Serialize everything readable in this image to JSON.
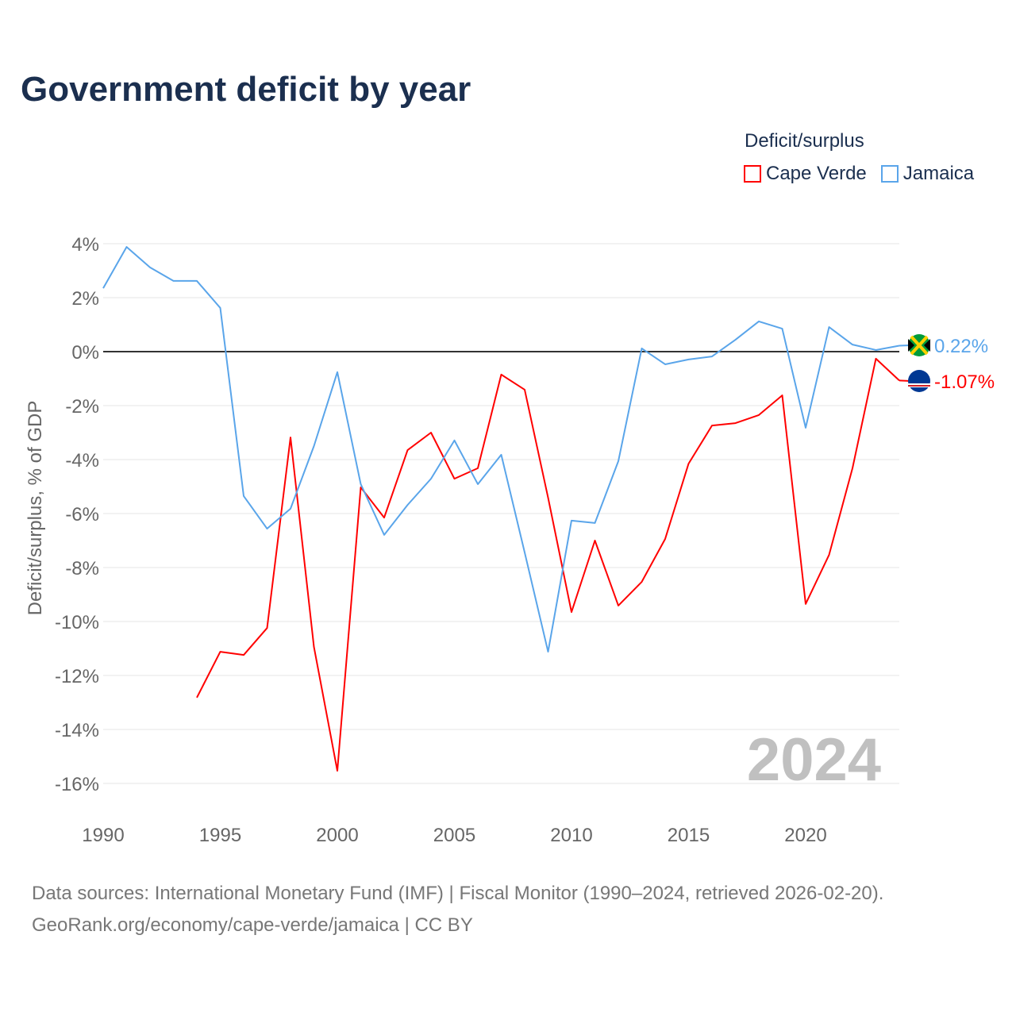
{
  "title": "Government deficit by year",
  "legend": {
    "title": "Deficit/surplus",
    "items": [
      {
        "label": "Cape Verde",
        "color": "#ff0000"
      },
      {
        "label": "Jamaica",
        "color": "#5aa5ea"
      }
    ]
  },
  "footer": {
    "line1": "Data sources: International Monetary Fund (IMF) | Fiscal Monitor (1990–2024, retrieved 2026-02-20).",
    "line2": "GeoRank.org/economy/cape-verde/jamaica | CC BY"
  },
  "chart_data": {
    "type": "line",
    "title": "Government deficit by year",
    "ylabel": "Deficit/surplus, % of GDP",
    "xlabel": "",
    "xlim": [
      1990,
      2024
    ],
    "ylim": [
      -17,
      4.5
    ],
    "yticks": [
      4,
      2,
      0,
      -2,
      -4,
      -6,
      -8,
      -10,
      -12,
      -14,
      -16
    ],
    "ytick_labels": [
      "4%",
      "2%",
      "0%",
      "-2%",
      "-4%",
      "-6%",
      "-8%",
      "-10%",
      "-12%",
      "-14%",
      "-16%"
    ],
    "xticks": [
      1990,
      1995,
      2000,
      2005,
      2010,
      2015,
      2020
    ],
    "xtick_labels": [
      "1990",
      "1995",
      "2000",
      "2005",
      "2010",
      "2015",
      "2020"
    ],
    "watermark": "2024",
    "grid": true,
    "legend_position": "top-right",
    "series": [
      {
        "name": "Cape Verde",
        "color": "#ff0000",
        "end_label": "-1.07%",
        "x": [
          1994,
          1995,
          1996,
          1997,
          1998,
          1999,
          2000,
          2001,
          2002,
          2003,
          2004,
          2005,
          2006,
          2007,
          2008,
          2009,
          2010,
          2011,
          2012,
          2013,
          2014,
          2015,
          2016,
          2017,
          2018,
          2019,
          2020,
          2021,
          2022,
          2023,
          2024
        ],
        "values": [
          -12.82,
          -11.12,
          -11.24,
          -10.24,
          -3.18,
          -10.94,
          -15.53,
          -5.03,
          -6.15,
          -3.65,
          -3.0,
          -4.71,
          -4.32,
          -0.85,
          -1.41,
          -5.41,
          -9.65,
          -7.0,
          -9.41,
          -8.53,
          -6.94,
          -4.15,
          -2.74,
          -2.65,
          -2.35,
          -1.62,
          -9.35,
          -7.53,
          -4.32,
          -0.26,
          -1.07
        ]
      },
      {
        "name": "Jamaica",
        "color": "#5aa5ea",
        "end_label": "0.22%",
        "x": [
          1990,
          1991,
          1992,
          1993,
          1994,
          1995,
          1996,
          1997,
          1998,
          1999,
          2000,
          2001,
          2002,
          2003,
          2004,
          2005,
          2006,
          2007,
          2008,
          2009,
          2010,
          2011,
          2012,
          2013,
          2014,
          2015,
          2016,
          2017,
          2018,
          2019,
          2020,
          2021,
          2022,
          2023,
          2024
        ],
        "values": [
          2.35,
          3.88,
          3.12,
          2.62,
          2.62,
          1.62,
          -5.35,
          -6.56,
          -5.82,
          -3.5,
          -0.76,
          -4.91,
          -6.79,
          -5.68,
          -4.71,
          -3.29,
          -4.91,
          -3.82,
          -7.44,
          -11.12,
          -6.26,
          -6.35,
          -4.06,
          0.12,
          -0.47,
          -0.29,
          -0.18,
          0.44,
          1.12,
          0.85,
          -2.82,
          0.91,
          0.26,
          0.06,
          0.22
        ]
      }
    ]
  }
}
